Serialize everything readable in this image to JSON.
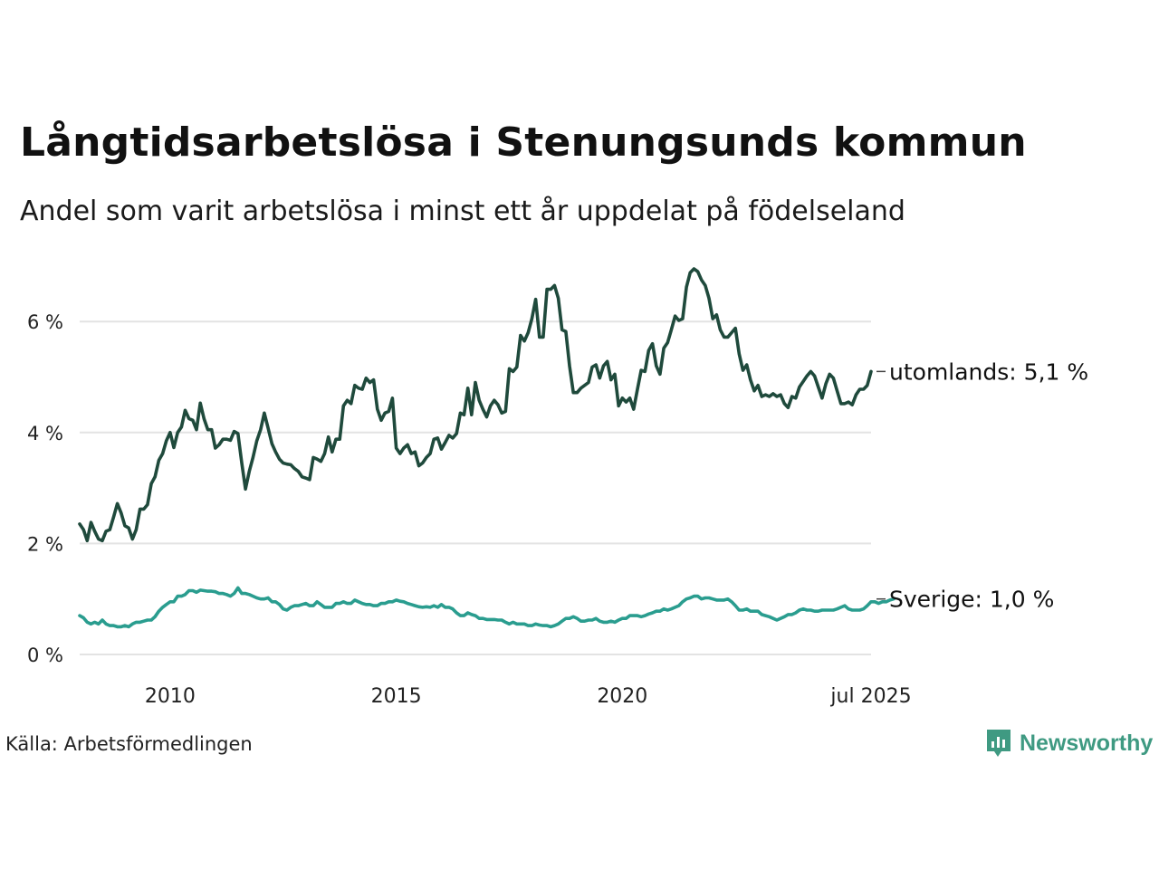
{
  "title": "Långtidsarbetslösa i Stenungsunds kommun",
  "subtitle": "Andel som varit arbetslösa i minst ett år uppdelat på födelseland",
  "source": "Källa: Arbetsförmedlingen",
  "logo_text": "Newsworthy",
  "colors": {
    "utomlands": "#1f4a3c",
    "sverige": "#2a9d8f",
    "grid": "#e3e3e3",
    "logo": "#3f9a82"
  },
  "chart_data": {
    "type": "line",
    "x_start": "2008-01",
    "x_end": "2025-07",
    "y_ticks": [
      0,
      2,
      4,
      6
    ],
    "y_tick_labels": [
      "0 %",
      "2 %",
      "4 %",
      "6 %"
    ],
    "x_ticks": [
      "2010-01",
      "2015-01",
      "2020-01",
      "2025-07"
    ],
    "x_tick_labels": [
      "2010",
      "2015",
      "2020",
      "jul 2025"
    ],
    "ylim": [
      0,
      7
    ],
    "grid": true,
    "series": [
      {
        "key": "utomlands",
        "end_label": "utomlands: 5,1 %",
        "values": [
          2.35,
          2.25,
          2.05,
          2.38,
          2.22,
          2.08,
          2.05,
          2.22,
          2.25,
          2.48,
          2.72,
          2.55,
          2.32,
          2.28,
          2.08,
          2.25,
          2.62,
          2.62,
          2.7,
          3.08,
          3.2,
          3.5,
          3.62,
          3.85,
          4.0,
          3.73,
          4.0,
          4.1,
          4.4,
          4.25,
          4.22,
          4.05,
          4.53,
          4.25,
          4.05,
          4.05,
          3.72,
          3.78,
          3.88,
          3.88,
          3.86,
          4.02,
          3.98,
          3.45,
          2.98,
          3.3,
          3.55,
          3.85,
          4.05,
          4.35,
          4.08,
          3.8,
          3.65,
          3.52,
          3.45,
          3.43,
          3.42,
          3.35,
          3.3,
          3.2,
          3.18,
          3.15,
          3.55,
          3.52,
          3.48,
          3.62,
          3.92,
          3.65,
          3.88,
          3.88,
          4.48,
          4.58,
          4.52,
          4.85,
          4.8,
          4.78,
          4.98,
          4.9,
          4.95,
          4.42,
          4.22,
          4.35,
          4.38,
          4.62,
          3.72,
          3.62,
          3.72,
          3.78,
          3.62,
          3.65,
          3.4,
          3.45,
          3.55,
          3.62,
          3.88,
          3.9,
          3.7,
          3.82,
          3.95,
          3.9,
          3.98,
          4.35,
          4.32,
          4.8,
          4.32,
          4.9,
          4.58,
          4.42,
          4.28,
          4.48,
          4.58,
          4.5,
          4.35,
          4.38,
          5.15,
          5.1,
          5.18,
          5.75,
          5.65,
          5.8,
          6.05,
          6.4,
          5.72,
          5.72,
          6.58,
          6.58,
          6.65,
          6.42,
          5.85,
          5.82,
          5.2,
          4.72,
          4.72,
          4.8,
          4.85,
          4.9,
          5.18,
          5.22,
          4.98,
          5.2,
          5.28,
          4.95,
          5.05,
          4.48,
          4.62,
          4.55,
          4.62,
          4.42,
          4.78,
          5.12,
          5.1,
          5.48,
          5.6,
          5.2,
          5.05,
          5.52,
          5.62,
          5.85,
          6.1,
          6.02,
          6.05,
          6.62,
          6.88,
          6.95,
          6.9,
          6.75,
          6.65,
          6.42,
          6.05,
          6.12,
          5.85,
          5.72,
          5.72,
          5.8,
          5.88,
          5.42,
          5.12,
          5.22,
          4.95,
          4.75,
          4.85,
          4.65,
          4.68,
          4.65,
          4.7,
          4.65,
          4.68,
          4.52,
          4.45,
          4.65,
          4.62,
          4.82,
          4.92,
          5.02,
          5.1,
          5.02,
          4.82,
          4.62,
          4.88,
          5.05,
          4.98,
          4.75,
          4.52,
          4.52,
          4.55,
          4.5,
          4.68,
          4.78,
          4.78,
          4.85,
          5.1
        ]
      },
      {
        "key": "sverige",
        "end_label": "Sverige: 1,0 %",
        "values": [
          0.7,
          0.66,
          0.58,
          0.55,
          0.58,
          0.55,
          0.62,
          0.55,
          0.52,
          0.52,
          0.5,
          0.5,
          0.52,
          0.5,
          0.55,
          0.58,
          0.58,
          0.6,
          0.62,
          0.62,
          0.68,
          0.78,
          0.85,
          0.9,
          0.95,
          0.95,
          1.05,
          1.05,
          1.08,
          1.15,
          1.15,
          1.12,
          1.16,
          1.15,
          1.14,
          1.14,
          1.13,
          1.1,
          1.1,
          1.08,
          1.05,
          1.1,
          1.2,
          1.1,
          1.1,
          1.08,
          1.05,
          1.02,
          1.0,
          1.0,
          1.02,
          0.95,
          0.95,
          0.9,
          0.82,
          0.8,
          0.85,
          0.88,
          0.88,
          0.9,
          0.92,
          0.88,
          0.88,
          0.95,
          0.9,
          0.85,
          0.85,
          0.85,
          0.92,
          0.92,
          0.95,
          0.92,
          0.92,
          0.98,
          0.95,
          0.92,
          0.9,
          0.9,
          0.88,
          0.88,
          0.92,
          0.92,
          0.95,
          0.95,
          0.98,
          0.96,
          0.95,
          0.92,
          0.9,
          0.88,
          0.86,
          0.85,
          0.86,
          0.85,
          0.88,
          0.85,
          0.9,
          0.85,
          0.85,
          0.82,
          0.75,
          0.7,
          0.7,
          0.75,
          0.72,
          0.7,
          0.65,
          0.65,
          0.63,
          0.63,
          0.63,
          0.62,
          0.62,
          0.58,
          0.55,
          0.58,
          0.55,
          0.55,
          0.55,
          0.52,
          0.52,
          0.55,
          0.53,
          0.52,
          0.52,
          0.5,
          0.52,
          0.55,
          0.6,
          0.65,
          0.65,
          0.68,
          0.65,
          0.6,
          0.6,
          0.62,
          0.62,
          0.65,
          0.6,
          0.58,
          0.58,
          0.6,
          0.58,
          0.62,
          0.65,
          0.65,
          0.7,
          0.7,
          0.7,
          0.68,
          0.7,
          0.73,
          0.75,
          0.78,
          0.78,
          0.82,
          0.8,
          0.82,
          0.85,
          0.88,
          0.95,
          1.0,
          1.02,
          1.05,
          1.05,
          1.0,
          1.02,
          1.02,
          1.0,
          0.98,
          0.98,
          0.98,
          1.0,
          0.95,
          0.88,
          0.8,
          0.8,
          0.82,
          0.78,
          0.78,
          0.78,
          0.72,
          0.7,
          0.68,
          0.65,
          0.62,
          0.65,
          0.68,
          0.72,
          0.72,
          0.75,
          0.8,
          0.82,
          0.8,
          0.8,
          0.78,
          0.78,
          0.8,
          0.8,
          0.8,
          0.8,
          0.82,
          0.85,
          0.88,
          0.82,
          0.8,
          0.8,
          0.8,
          0.82,
          0.88,
          0.95,
          0.95,
          0.92,
          0.95,
          0.95,
          0.98,
          1.0
        ]
      }
    ]
  }
}
